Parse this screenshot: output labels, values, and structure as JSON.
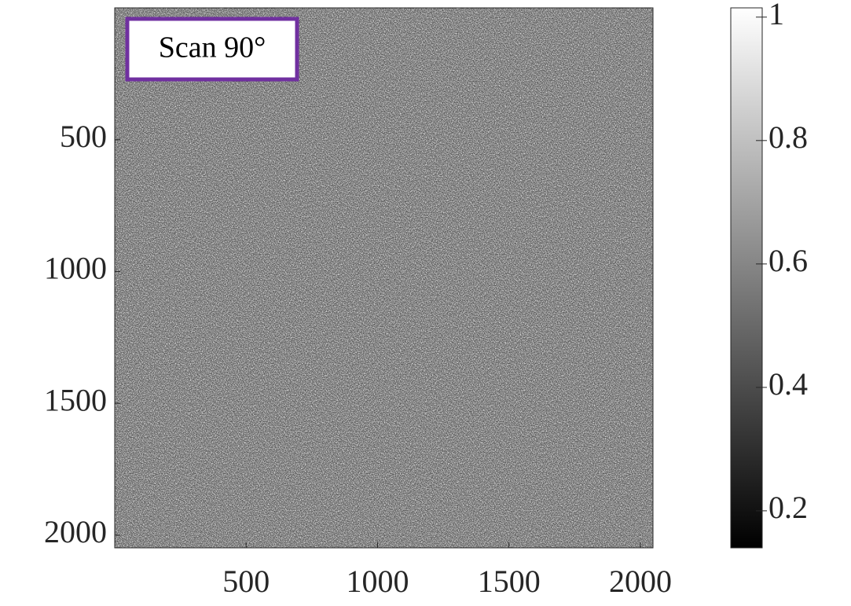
{
  "chart_data": {
    "type": "image",
    "annotation": "Scan 90°",
    "xlim": [
      0,
      2048
    ],
    "ylim": [
      0,
      2048
    ],
    "yreverse": true,
    "xticks": [
      500,
      1000,
      1500,
      2000
    ],
    "yticks": [
      500,
      1000,
      1500,
      2000
    ],
    "colormap": "gray",
    "clim": [
      0.14,
      1.015
    ],
    "cticks": [
      0.2,
      0.4,
      0.6,
      0.8,
      1
    ],
    "annotation_border_color": "#7030a0"
  }
}
